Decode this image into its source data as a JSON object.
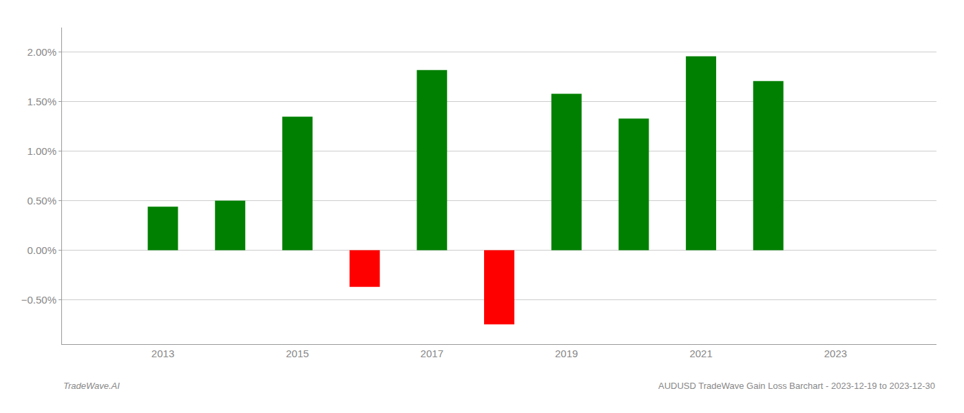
{
  "chart_data": {
    "type": "bar",
    "title": "AUDUSD TradeWave Gain Loss Barchart - 2023-12-19 to 2023-12-30",
    "annotations": [
      "TradeWave.AI"
    ],
    "x": [
      2013,
      2014,
      2015,
      2016,
      2017,
      2018,
      2019,
      2020,
      2021,
      2022
    ],
    "values": [
      0.0044,
      0.005,
      0.0135,
      -0.0037,
      0.0182,
      -0.0075,
      0.0158,
      0.0133,
      0.0196,
      0.0171
    ],
    "colors": [
      "#008000",
      "#008000",
      "#008000",
      "#ff0000",
      "#008000",
      "#ff0000",
      "#008000",
      "#008000",
      "#008000",
      "#008000"
    ],
    "xlim": [
      2011.5,
      2024.5
    ],
    "xticks": [
      2013,
      2015,
      2017,
      2019,
      2021,
      2023
    ],
    "ylim": [
      -0.0095,
      0.0225
    ],
    "yticks": [
      {
        "value": -0.005,
        "label": "−0.50%"
      },
      {
        "value": 0,
        "label": "0.00%"
      },
      {
        "value": 0.005,
        "label": "0.50%"
      },
      {
        "value": 0.01,
        "label": "1.00%"
      },
      {
        "value": 0.015,
        "label": "1.50%"
      },
      {
        "value": 0.02,
        "label": "2.00%"
      }
    ],
    "grid": "y"
  }
}
